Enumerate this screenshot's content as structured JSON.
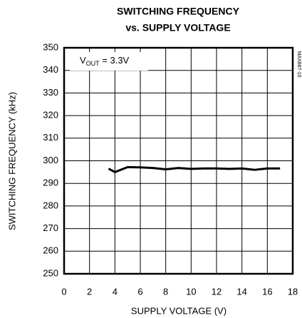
{
  "chart_data": {
    "type": "line",
    "title": [
      "SWITCHING FREQUENCY",
      "vs. SUPPLY VOLTAGE"
    ],
    "annotation": [
      "V",
      "OUT",
      " = 3.3V"
    ],
    "figure_code": "MAX887-10",
    "xlabel": "SUPPLY VOLTAGE (V)",
    "ylabel": "SWITCHING FREQUENCY (kHz)",
    "xlim": [
      0,
      18
    ],
    "ylim": [
      250,
      350
    ],
    "xticks": [
      0,
      2,
      4,
      6,
      8,
      10,
      12,
      14,
      16,
      18
    ],
    "yticks": [
      250,
      260,
      270,
      280,
      290,
      300,
      310,
      320,
      330,
      340,
      350
    ],
    "grid": true,
    "series": [
      {
        "color": "#000000",
        "x": [
          3.5,
          4,
          5,
          6,
          7,
          8,
          9,
          10,
          11,
          12,
          13,
          14,
          15,
          16,
          17
        ],
        "values": [
          296.5,
          295,
          297.2,
          297.1,
          296.8,
          296.2,
          296.8,
          296.4,
          296.6,
          296.6,
          296.4,
          296.6,
          296,
          296.6,
          296.6
        ]
      }
    ]
  }
}
